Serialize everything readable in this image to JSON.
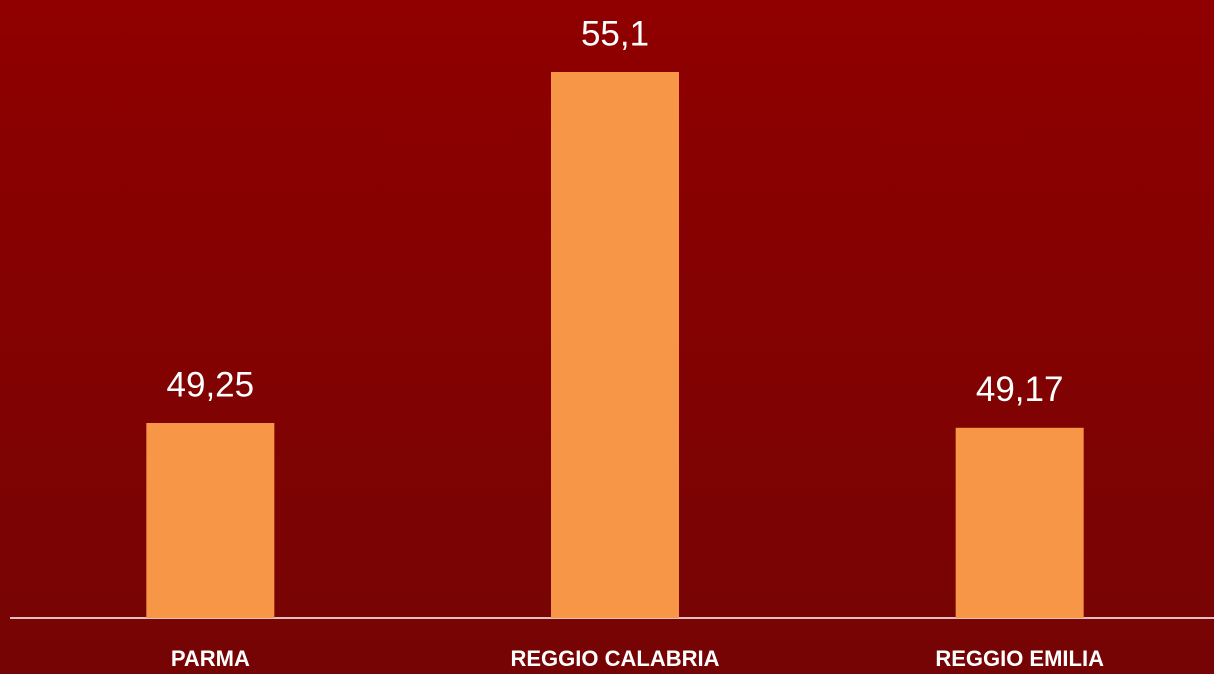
{
  "chart_data": {
    "type": "bar",
    "categories": [
      "PARMA",
      "REGGIO CALABRIA",
      "REGGIO EMILIA"
    ],
    "values": [
      49.25,
      55.1,
      49.17
    ],
    "value_labels": [
      "49,25",
      "55,1",
      "49,17"
    ],
    "color": "#f79646",
    "ylim": [
      46,
      56.3
    ]
  }
}
